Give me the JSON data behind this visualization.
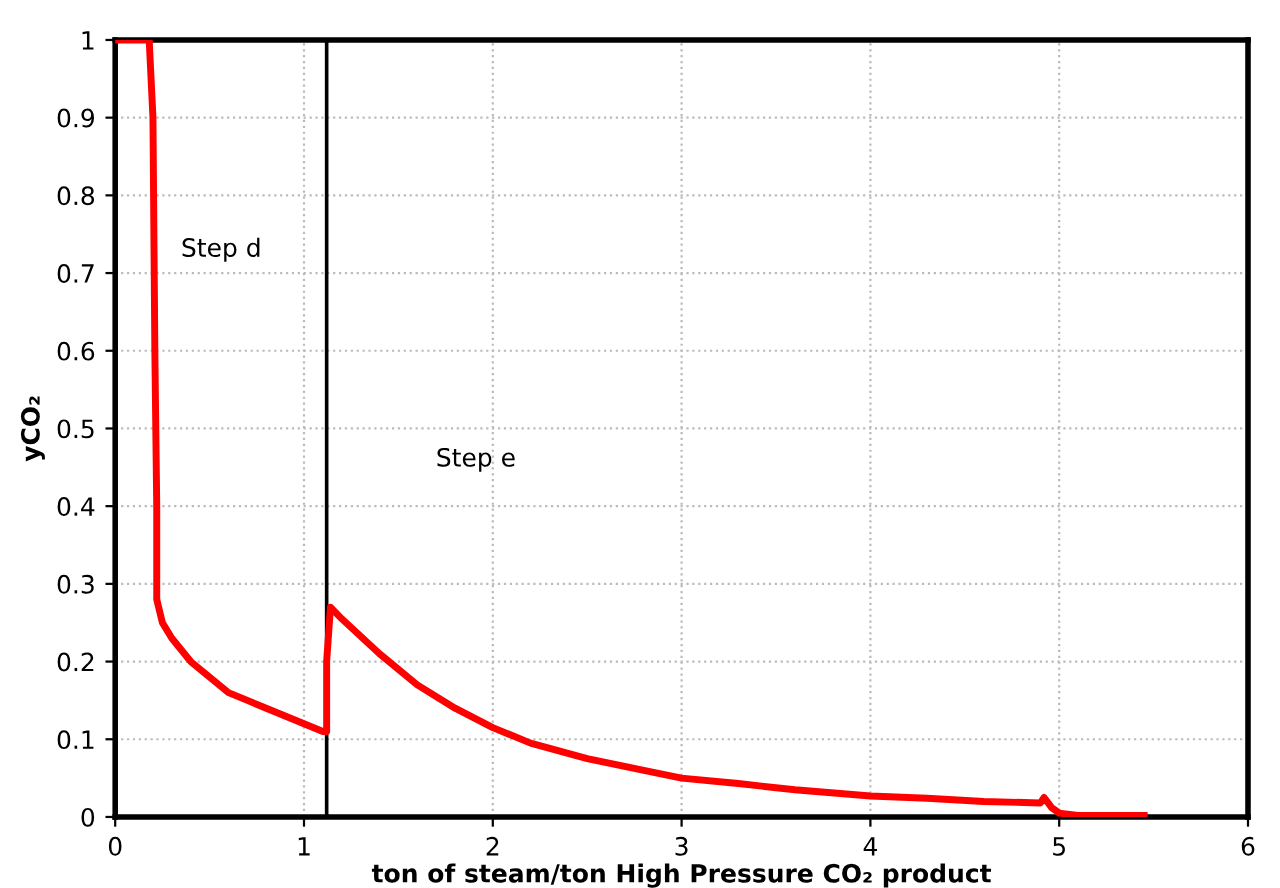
{
  "chart_data": {
    "type": "line",
    "xlabel": "ton of steam/ton High Pressure CO₂ product",
    "ylabel": "yCO₂",
    "x": [
      0,
      0.18,
      0.2,
      0.21,
      0.22,
      0.22,
      0.25,
      0.3,
      0.4,
      0.5,
      0.6,
      0.7,
      0.8,
      0.9,
      1.0,
      1.1,
      1.12,
      1.12,
      1.14,
      1.2,
      1.4,
      1.6,
      1.8,
      2.0,
      2.2,
      2.5,
      2.8,
      3.0,
      3.3,
      3.6,
      4.0,
      4.3,
      4.6,
      4.9,
      4.92,
      4.96,
      5.0,
      5.1,
      5.45
    ],
    "series": [
      {
        "color": "#ff0000",
        "values": [
          1,
          1,
          0.9,
          0.6,
          0.4,
          0.28,
          0.25,
          0.23,
          0.2,
          0.18,
          0.16,
          0.15,
          0.14,
          0.13,
          0.12,
          0.11,
          0.11,
          0.2,
          0.27,
          0.255,
          0.21,
          0.17,
          0.14,
          0.115,
          0.095,
          0.075,
          0.06,
          0.05,
          0.043,
          0.035,
          0.027,
          0.024,
          0.02,
          0.018,
          0.025,
          0.012,
          0.005,
          0.002,
          0.002
        ]
      }
    ],
    "xlim": [
      0,
      6
    ],
    "ylim": [
      0,
      1
    ],
    "xticks": [
      0,
      1,
      2,
      3,
      4,
      5,
      6
    ],
    "yticks": [
      0,
      0.1,
      0.2,
      0.3,
      0.4,
      0.5,
      0.6,
      0.7,
      0.8,
      0.9,
      1
    ],
    "ref_lines": [
      {
        "axis": "x",
        "value": 1.12,
        "color": "#000000",
        "line_style": "solid"
      }
    ],
    "annotations": [
      "Step d",
      "Step e"
    ],
    "grid": true,
    "legend": false,
    "marker": "none",
    "line_style": "solid"
  }
}
